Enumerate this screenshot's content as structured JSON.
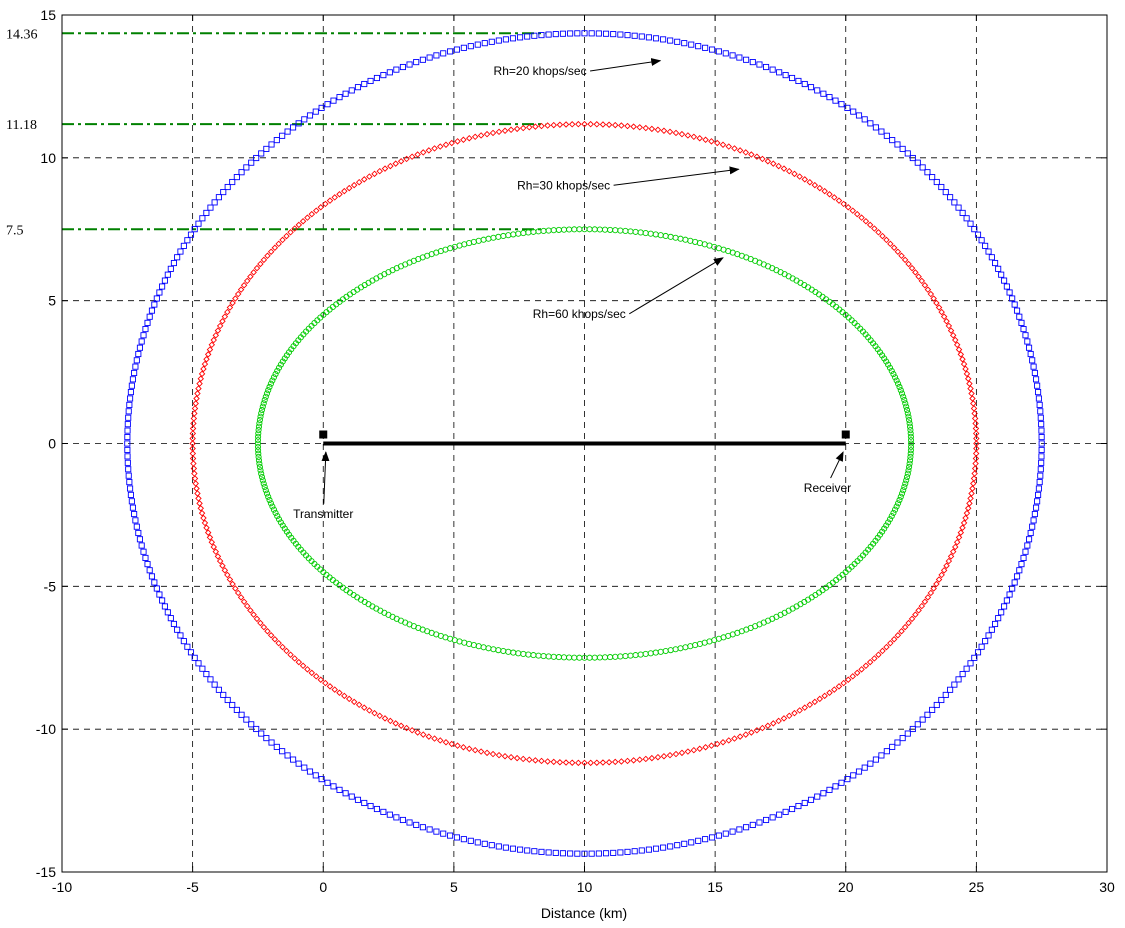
{
  "chart_data": {
    "type": "scatter",
    "title": "",
    "xlabel": "Distance (km)",
    "ylabel": "",
    "xlim": [
      -10,
      30
    ],
    "ylim": [
      -15,
      15
    ],
    "x_ticks": [
      -10,
      -5,
      0,
      5,
      10,
      15,
      20,
      25,
      30
    ],
    "y_ticks": [
      -15,
      -10,
      -5,
      0,
      5,
      10,
      15
    ],
    "grid": true,
    "series": [
      {
        "name": "Rh=20 khops/sec",
        "color": "#0000ff",
        "marker": "square",
        "shape": "ellipse",
        "center": [
          10,
          0
        ],
        "semi_axis_x": 17.5,
        "semi_axis_y": 14.36
      },
      {
        "name": "Rh=30 khops/sec",
        "color": "#ff0000",
        "marker": "diamond",
        "shape": "ellipse",
        "center": [
          10,
          0
        ],
        "semi_axis_x": 15,
        "semi_axis_y": 11.18
      },
      {
        "name": "Rh=60 khops/sec",
        "color": "#00cc00",
        "marker": "circle",
        "shape": "ellipse",
        "center": [
          10,
          0
        ],
        "semi_axis_x": 12.5,
        "semi_axis_y": 7.5
      }
    ],
    "reference_lines": [
      {
        "y": 14.36,
        "label": "14.36",
        "x_start": -10,
        "x_end": 8.5,
        "color": "#008000"
      },
      {
        "y": 11.18,
        "label": "11.18",
        "x_start": -10,
        "x_end": 8.5,
        "color": "#008000"
      },
      {
        "y": 7.5,
        "label": "7.5",
        "x_start": -10,
        "x_end": 8.5,
        "color": "#008000"
      }
    ],
    "baseline": {
      "x_start": 0,
      "x_end": 20,
      "y": 0,
      "color": "#000000"
    },
    "points": [
      {
        "name": "Transmitter",
        "x": 0,
        "y": 0
      },
      {
        "name": "Receiver",
        "x": 20,
        "y": 0
      }
    ],
    "annotations": [
      {
        "text": "Rh=20 khops/sec",
        "text_x": 8.3,
        "text_y": 12.9,
        "arrow_to_x": 12.9,
        "arrow_to_y": 13.4
      },
      {
        "text": "Rh=30 khops/sec",
        "text_x": 9.2,
        "text_y": 8.9,
        "arrow_to_x": 15.9,
        "arrow_to_y": 9.6
      },
      {
        "text": "Rh=60 khops/sec",
        "text_x": 9.8,
        "text_y": 4.4,
        "arrow_to_x": 15.3,
        "arrow_to_y": 6.5
      },
      {
        "text": "Transmitter",
        "text_x": 0.0,
        "text_y": -2.6,
        "arrow_to_x": 0.1,
        "arrow_to_y": -0.3
      },
      {
        "text": "Receiver",
        "text_x": 19.3,
        "text_y": -1.7,
        "arrow_to_x": 19.9,
        "arrow_to_y": -0.3
      }
    ]
  }
}
